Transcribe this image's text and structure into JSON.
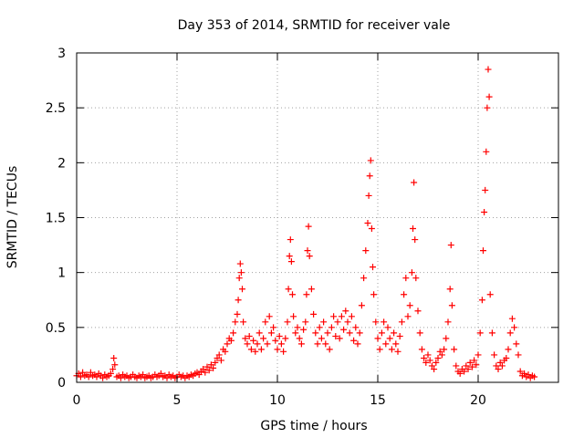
{
  "chart_data": {
    "type": "scatter",
    "title": "Day 353 of 2014, SRMTID for receiver vale",
    "xlabel": "GPS time / hours",
    "ylabel": "SRMTID / TECUs",
    "xlim": [
      0,
      24
    ],
    "ylim": [
      0,
      3
    ],
    "grid": true,
    "marker": "+",
    "colors": {
      "series": "#ff0000",
      "grid": "#a0a0a0",
      "axis": "#000000"
    },
    "x_ticks": [
      0,
      5,
      10,
      15,
      20
    ],
    "x_tick_labels": [
      "0",
      "5",
      "10",
      "15",
      "20"
    ],
    "y_ticks": [
      0,
      0.5,
      1,
      1.5,
      2,
      2.5,
      3
    ],
    "y_tick_labels": [
      "0",
      "0.5",
      "1",
      "1.5",
      "2",
      "2.5",
      "3"
    ],
    "series": [
      {
        "name": "SRMTID",
        "points": [
          [
            0.0,
            0.06
          ],
          [
            0.1,
            0.08
          ],
          [
            0.2,
            0.05
          ],
          [
            0.3,
            0.09
          ],
          [
            0.4,
            0.06
          ],
          [
            0.5,
            0.07
          ],
          [
            0.6,
            0.05
          ],
          [
            0.7,
            0.09
          ],
          [
            0.8,
            0.06
          ],
          [
            0.9,
            0.07
          ],
          [
            1.0,
            0.05
          ],
          [
            1.1,
            0.08
          ],
          [
            1.2,
            0.06
          ],
          [
            1.3,
            0.04
          ],
          [
            1.4,
            0.07
          ],
          [
            1.5,
            0.05
          ],
          [
            1.6,
            0.06
          ],
          [
            1.7,
            0.08
          ],
          [
            1.8,
            0.12
          ],
          [
            1.85,
            0.22
          ],
          [
            1.9,
            0.16
          ],
          [
            2.0,
            0.05
          ],
          [
            2.1,
            0.06
          ],
          [
            2.2,
            0.04
          ],
          [
            2.3,
            0.07
          ],
          [
            2.4,
            0.05
          ],
          [
            2.5,
            0.06
          ],
          [
            2.6,
            0.04
          ],
          [
            2.7,
            0.05
          ],
          [
            2.8,
            0.07
          ],
          [
            2.9,
            0.05
          ],
          [
            3.0,
            0.04
          ],
          [
            3.1,
            0.06
          ],
          [
            3.2,
            0.05
          ],
          [
            3.3,
            0.07
          ],
          [
            3.4,
            0.04
          ],
          [
            3.5,
            0.05
          ],
          [
            3.6,
            0.06
          ],
          [
            3.7,
            0.04
          ],
          [
            3.8,
            0.05
          ],
          [
            3.9,
            0.07
          ],
          [
            4.0,
            0.05
          ],
          [
            4.1,
            0.06
          ],
          [
            4.2,
            0.08
          ],
          [
            4.3,
            0.05
          ],
          [
            4.4,
            0.06
          ],
          [
            4.5,
            0.04
          ],
          [
            4.6,
            0.07
          ],
          [
            4.7,
            0.05
          ],
          [
            4.8,
            0.06
          ],
          [
            4.9,
            0.04
          ],
          [
            5.0,
            0.05
          ],
          [
            5.1,
            0.07
          ],
          [
            5.2,
            0.05
          ],
          [
            5.3,
            0.06
          ],
          [
            5.4,
            0.04
          ],
          [
            5.5,
            0.06
          ],
          [
            5.6,
            0.05
          ],
          [
            5.7,
            0.07
          ],
          [
            5.8,
            0.06
          ],
          [
            5.9,
            0.08
          ],
          [
            6.0,
            0.09
          ],
          [
            6.1,
            0.07
          ],
          [
            6.2,
            0.1
          ],
          [
            6.3,
            0.12
          ],
          [
            6.4,
            0.09
          ],
          [
            6.5,
            0.14
          ],
          [
            6.6,
            0.11
          ],
          [
            6.7,
            0.16
          ],
          [
            6.8,
            0.13
          ],
          [
            6.9,
            0.18
          ],
          [
            7.0,
            0.22
          ],
          [
            7.1,
            0.25
          ],
          [
            7.2,
            0.2
          ],
          [
            7.3,
            0.3
          ],
          [
            7.4,
            0.28
          ],
          [
            7.5,
            0.35
          ],
          [
            7.6,
            0.4
          ],
          [
            7.7,
            0.38
          ],
          [
            7.8,
            0.45
          ],
          [
            7.9,
            0.55
          ],
          [
            8.0,
            0.62
          ],
          [
            8.05,
            0.75
          ],
          [
            8.1,
            0.95
          ],
          [
            8.15,
            1.08
          ],
          [
            8.2,
            1.0
          ],
          [
            8.25,
            0.85
          ],
          [
            8.3,
            0.55
          ],
          [
            8.4,
            0.4
          ],
          [
            8.5,
            0.35
          ],
          [
            8.6,
            0.42
          ],
          [
            8.7,
            0.3
          ],
          [
            8.8,
            0.38
          ],
          [
            8.9,
            0.28
          ],
          [
            9.0,
            0.35
          ],
          [
            9.1,
            0.45
          ],
          [
            9.2,
            0.3
          ],
          [
            9.3,
            0.4
          ],
          [
            9.4,
            0.55
          ],
          [
            9.5,
            0.35
          ],
          [
            9.6,
            0.6
          ],
          [
            9.7,
            0.45
          ],
          [
            9.8,
            0.5
          ],
          [
            9.9,
            0.38
          ],
          [
            10.0,
            0.3
          ],
          [
            10.1,
            0.42
          ],
          [
            10.2,
            0.35
          ],
          [
            10.3,
            0.28
          ],
          [
            10.4,
            0.4
          ],
          [
            10.5,
            0.55
          ],
          [
            10.55,
            0.85
          ],
          [
            10.6,
            1.15
          ],
          [
            10.65,
            1.3
          ],
          [
            10.7,
            1.1
          ],
          [
            10.75,
            0.8
          ],
          [
            10.8,
            0.6
          ],
          [
            10.9,
            0.45
          ],
          [
            11.0,
            0.5
          ],
          [
            11.1,
            0.4
          ],
          [
            11.2,
            0.35
          ],
          [
            11.3,
            0.48
          ],
          [
            11.4,
            0.55
          ],
          [
            11.45,
            0.8
          ],
          [
            11.5,
            1.2
          ],
          [
            11.55,
            1.42
          ],
          [
            11.6,
            1.15
          ],
          [
            11.7,
            0.85
          ],
          [
            11.8,
            0.62
          ],
          [
            11.9,
            0.45
          ],
          [
            12.0,
            0.35
          ],
          [
            12.1,
            0.5
          ],
          [
            12.2,
            0.4
          ],
          [
            12.3,
            0.55
          ],
          [
            12.4,
            0.35
          ],
          [
            12.5,
            0.45
          ],
          [
            12.6,
            0.3
          ],
          [
            12.7,
            0.5
          ],
          [
            12.8,
            0.6
          ],
          [
            12.9,
            0.42
          ],
          [
            13.0,
            0.55
          ],
          [
            13.1,
            0.4
          ],
          [
            13.2,
            0.6
          ],
          [
            13.3,
            0.48
          ],
          [
            13.4,
            0.65
          ],
          [
            13.5,
            0.55
          ],
          [
            13.6,
            0.45
          ],
          [
            13.7,
            0.6
          ],
          [
            13.8,
            0.38
          ],
          [
            13.9,
            0.5
          ],
          [
            14.0,
            0.35
          ],
          [
            14.1,
            0.45
          ],
          [
            14.2,
            0.7
          ],
          [
            14.3,
            0.95
          ],
          [
            14.4,
            1.2
          ],
          [
            14.5,
            1.45
          ],
          [
            14.55,
            1.7
          ],
          [
            14.6,
            1.88
          ],
          [
            14.65,
            2.02
          ],
          [
            14.7,
            1.4
          ],
          [
            14.75,
            1.05
          ],
          [
            14.8,
            0.8
          ],
          [
            14.9,
            0.55
          ],
          [
            15.0,
            0.4
          ],
          [
            15.1,
            0.3
          ],
          [
            15.2,
            0.45
          ],
          [
            15.3,
            0.55
          ],
          [
            15.4,
            0.35
          ],
          [
            15.5,
            0.5
          ],
          [
            15.6,
            0.4
          ],
          [
            15.7,
            0.3
          ],
          [
            15.8,
            0.45
          ],
          [
            15.9,
            0.35
          ],
          [
            16.0,
            0.28
          ],
          [
            16.1,
            0.42
          ],
          [
            16.2,
            0.55
          ],
          [
            16.3,
            0.8
          ],
          [
            16.4,
            0.95
          ],
          [
            16.5,
            0.6
          ],
          [
            16.6,
            0.7
          ],
          [
            16.7,
            1.0
          ],
          [
            16.75,
            1.4
          ],
          [
            16.8,
            1.82
          ],
          [
            16.85,
            1.3
          ],
          [
            16.9,
            0.95
          ],
          [
            17.0,
            0.65
          ],
          [
            17.1,
            0.45
          ],
          [
            17.2,
            0.3
          ],
          [
            17.3,
            0.22
          ],
          [
            17.4,
            0.18
          ],
          [
            17.5,
            0.25
          ],
          [
            17.6,
            0.2
          ],
          [
            17.7,
            0.15
          ],
          [
            17.8,
            0.12
          ],
          [
            17.9,
            0.18
          ],
          [
            18.0,
            0.22
          ],
          [
            18.1,
            0.28
          ],
          [
            18.2,
            0.25
          ],
          [
            18.3,
            0.3
          ],
          [
            18.4,
            0.4
          ],
          [
            18.5,
            0.55
          ],
          [
            18.6,
            0.85
          ],
          [
            18.65,
            1.25
          ],
          [
            18.7,
            0.7
          ],
          [
            18.8,
            0.3
          ],
          [
            18.9,
            0.15
          ],
          [
            19.0,
            0.1
          ],
          [
            19.1,
            0.08
          ],
          [
            19.2,
            0.12
          ],
          [
            19.3,
            0.1
          ],
          [
            19.4,
            0.15
          ],
          [
            19.5,
            0.12
          ],
          [
            19.6,
            0.18
          ],
          [
            19.7,
            0.14
          ],
          [
            19.8,
            0.2
          ],
          [
            19.9,
            0.16
          ],
          [
            20.0,
            0.25
          ],
          [
            20.1,
            0.45
          ],
          [
            20.2,
            0.75
          ],
          [
            20.25,
            1.2
          ],
          [
            20.3,
            1.55
          ],
          [
            20.35,
            1.75
          ],
          [
            20.4,
            2.1
          ],
          [
            20.45,
            2.5
          ],
          [
            20.5,
            2.85
          ],
          [
            20.55,
            2.6
          ],
          [
            20.6,
            0.8
          ],
          [
            20.7,
            0.45
          ],
          [
            20.8,
            0.25
          ],
          [
            20.9,
            0.15
          ],
          [
            21.0,
            0.12
          ],
          [
            21.1,
            0.18
          ],
          [
            21.2,
            0.15
          ],
          [
            21.3,
            0.2
          ],
          [
            21.4,
            0.22
          ],
          [
            21.5,
            0.3
          ],
          [
            21.6,
            0.45
          ],
          [
            21.7,
            0.58
          ],
          [
            21.8,
            0.5
          ],
          [
            21.9,
            0.35
          ],
          [
            22.0,
            0.25
          ],
          [
            22.1,
            0.1
          ],
          [
            22.2,
            0.06
          ],
          [
            22.3,
            0.08
          ],
          [
            22.4,
            0.05
          ],
          [
            22.5,
            0.07
          ],
          [
            22.6,
            0.04
          ],
          [
            22.7,
            0.06
          ],
          [
            22.8,
            0.05
          ]
        ]
      }
    ]
  }
}
